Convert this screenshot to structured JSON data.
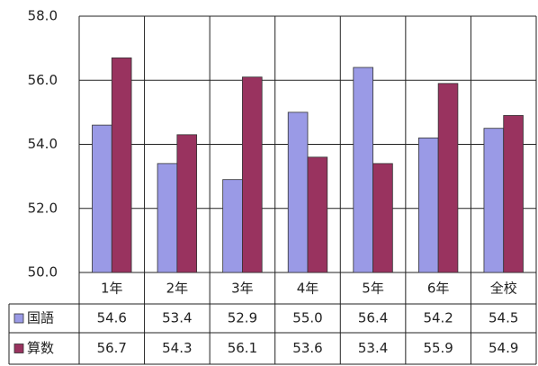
{
  "chart_data": {
    "type": "bar",
    "categories": [
      "1年",
      "2年",
      "3年",
      "4年",
      "5年",
      "6年",
      "全校"
    ],
    "series": [
      {
        "name": "国語",
        "color": "#9a9ae6",
        "values": [
          54.6,
          53.4,
          52.9,
          55.0,
          56.4,
          54.2,
          54.5
        ],
        "value_labels": [
          "54.6",
          "53.4",
          "52.9",
          "55.0",
          "56.4",
          "54.2",
          "54.5"
        ]
      },
      {
        "name": "算数",
        "color": "#99335f",
        "values": [
          56.7,
          54.3,
          56.1,
          53.6,
          53.4,
          55.9,
          54.9
        ],
        "value_labels": [
          "56.7",
          "54.3",
          "56.1",
          "53.6",
          "53.4",
          "55.9",
          "54.9"
        ]
      }
    ],
    "ylim": [
      50,
      58
    ],
    "yticks": [
      {
        "value": 50,
        "label": "50.0"
      },
      {
        "value": 52,
        "label": "52.0"
      },
      {
        "value": 54,
        "label": "54.0"
      },
      {
        "value": 56,
        "label": "56.0"
      },
      {
        "value": 58,
        "label": "58.0"
      }
    ],
    "grid": true
  }
}
